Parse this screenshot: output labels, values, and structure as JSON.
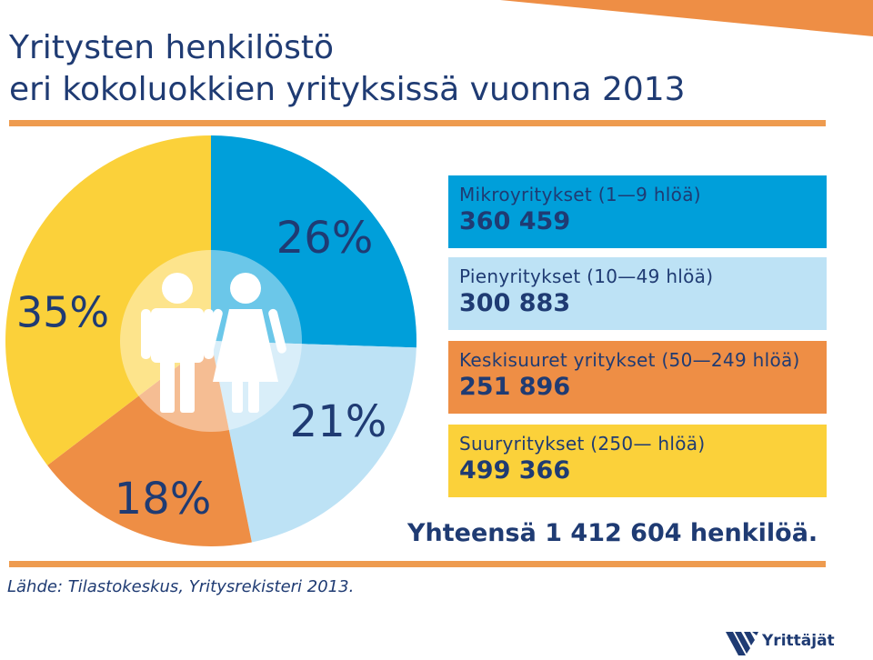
{
  "header": {
    "title_line1": "Yritysten henkilöstö",
    "title_line2": "eri kokoluokkien yrityksissä vuonna 2013"
  },
  "chart_data": {
    "type": "pie",
    "title": "Yritysten henkilöstö eri kokoluokkien yrityksissä vuonna 2013",
    "slices": [
      {
        "label": "Mikroyritykset (1—9 hlöä)",
        "value": 360459,
        "percent_label": "26%",
        "color": "#009fda"
      },
      {
        "label": "Pienyritykset (10—49 hlöä)",
        "value": 300883,
        "percent_label": "21%",
        "color": "#bde2f5"
      },
      {
        "label": "Keskisuuret yritykset (50—249 hlöä)",
        "value": 251896,
        "percent_label": "18%",
        "color": "#ee8e45"
      },
      {
        "label": "Suuryritykset  (250— hlöä)",
        "value": 499366,
        "percent_label": "35%",
        "color": "#fbd13a"
      }
    ]
  },
  "legend": [
    {
      "label": "Mikroyritykset (1—9 hlöä)",
      "value": "360 459",
      "color": "#009fda"
    },
    {
      "label": "Pienyritykset (10—49 hlöä)",
      "value": "300 883",
      "color": "#bde2f5"
    },
    {
      "label": "Keskisuuret yritykset (50—249 hlöä)",
      "value": "251 896",
      "color": "#ee8e45"
    },
    {
      "label": "Suuryritykset  (250— hlöä)",
      "value": "499 366",
      "color": "#fbd13a"
    }
  ],
  "total": "Yhteensä 1 412 604 henkilöä.",
  "source": "Lähde: Tilastokeskus, Yritysrekisteri 2013.",
  "logo": {
    "text": "Yrittäjät",
    "icon": "yrittajat-logo-icon"
  },
  "colors": {
    "title": "#1f3b73",
    "rule": "#ee9b4f",
    "band": "#ee8e45"
  }
}
